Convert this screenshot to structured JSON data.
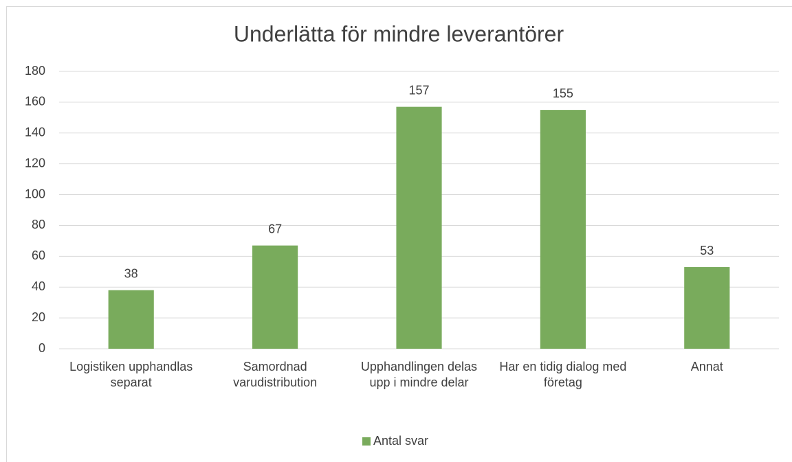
{
  "chart_data": {
    "type": "bar",
    "title": "Underlätta för mindre leverantörer",
    "categories": [
      "Logistiken upphandlas separat",
      "Samordnad varudistribution",
      "Upphandlingen delas upp i mindre delar",
      "Har en tidig dialog med företag",
      "Annat"
    ],
    "series": [
      {
        "name": "Antal svar",
        "color": "#79ab5c",
        "values": [
          38,
          67,
          157,
          155,
          53
        ]
      }
    ],
    "ylim": [
      0,
      180
    ],
    "yticks": [
      0,
      20,
      40,
      60,
      80,
      100,
      120,
      140,
      160,
      180
    ],
    "grid": true,
    "legend": "bottom"
  }
}
